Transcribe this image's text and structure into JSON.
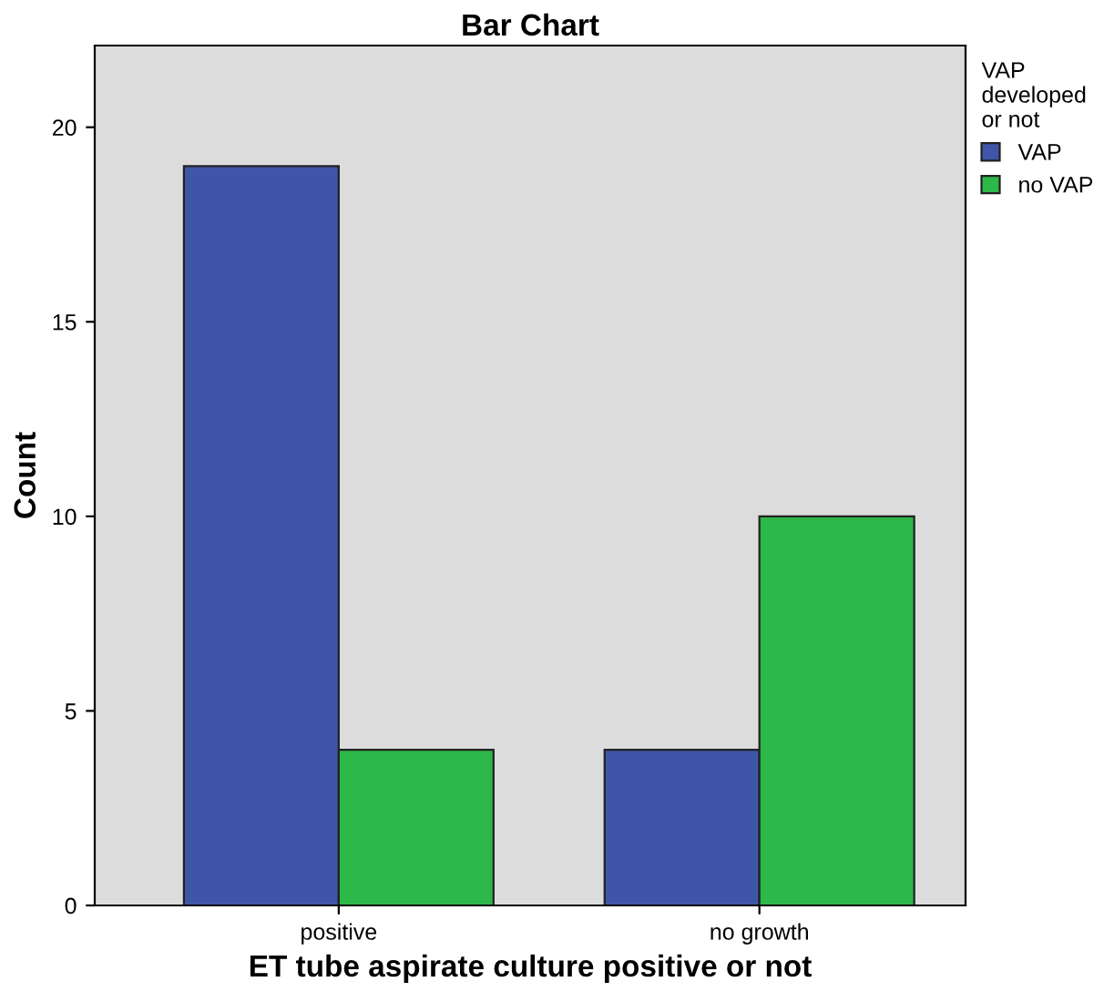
{
  "chart_data": {
    "type": "bar",
    "title": "Bar Chart",
    "xlabel": "ET tube aspirate culture positive or not",
    "ylabel": "Count",
    "legend_title": "VAP\ndeveloped\nor not",
    "categories": [
      "positive",
      "no growth"
    ],
    "series": [
      {
        "name": "VAP",
        "color": "#3f56a8",
        "values": [
          19,
          4
        ]
      },
      {
        "name": "no VAP",
        "color": "#2db84a",
        "values": [
          4,
          10
        ]
      }
    ],
    "ylim": [
      0,
      22.1
    ],
    "yticks": [
      0,
      5,
      10,
      15,
      20
    ],
    "grid": false,
    "legend": "top right"
  }
}
